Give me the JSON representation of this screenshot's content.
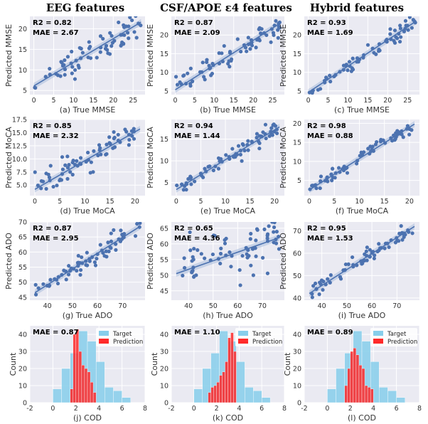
{
  "column_titles": [
    "EEG features",
    "CSF/APOE ε4 features",
    "Hybrid features"
  ],
  "colors": {
    "panel_bg": "#eaeaf2",
    "grid": "#ffffff",
    "scatter": "#4c72b0",
    "fit_line": "#4c72b0",
    "fit_band": "#a8bcdc",
    "hist_target": "#87ceeb",
    "hist_prediction": "#ff2a2a"
  },
  "chart_data": [
    {
      "type": "scatter",
      "row": 0,
      "col": 0,
      "xlabel": "(a) True MMSE",
      "ylabel": "Predicted MMSE",
      "xlim": [
        -1,
        28
      ],
      "ylim": [
        4,
        23
      ],
      "xticks": [
        0,
        5,
        10,
        15,
        20,
        25
      ],
      "yticks": [
        5,
        10,
        15,
        20
      ],
      "r2": "R2 = 0.82",
      "mae": "MAE = 2.67",
      "fit": [
        [
          0,
          6.1
        ],
        [
          27,
          21.6
        ]
      ]
    },
    {
      "type": "scatter",
      "row": 0,
      "col": 1,
      "xlabel": "(b) True MMSE",
      "ylabel": "Predicted MMSE",
      "xlim": [
        -1,
        28
      ],
      "ylim": [
        4,
        25
      ],
      "xticks": [
        0,
        5,
        10,
        15,
        20,
        25
      ],
      "yticks": [
        5,
        10,
        15,
        20
      ],
      "r2": "R2 = 0.87",
      "mae": "MAE = 2.09",
      "fit": [
        [
          0,
          5.3
        ],
        [
          27,
          23.2
        ]
      ]
    },
    {
      "type": "scatter",
      "row": 0,
      "col": 2,
      "xlabel": "(c) True MMSE",
      "ylabel": "Predicted MMSE",
      "xlim": [
        -1,
        28
      ],
      "ylim": [
        4,
        25
      ],
      "xticks": [
        0,
        5,
        10,
        15,
        20,
        25
      ],
      "yticks": [
        5,
        10,
        15,
        20
      ],
      "r2": "R2 = 0.93",
      "mae": "MAE = 1.69",
      "fit": [
        [
          0,
          4.6
        ],
        [
          27,
          23.6
        ]
      ]
    },
    {
      "type": "scatter",
      "row": 1,
      "col": 0,
      "xlabel": "(d) True MoCA",
      "ylabel": "Predicted MoCA",
      "xlim": [
        -1,
        22
      ],
      "ylim": [
        3,
        17.5
      ],
      "xticks": [
        0,
        5,
        10,
        15,
        20
      ],
      "yticks": [
        5,
        7.5,
        10,
        12.5,
        15,
        17.5
      ],
      "ytick_labels": [
        "5.0",
        "7.5",
        "10.0",
        "12.5",
        "15.0",
        "17.5"
      ],
      "r2": "R2 = 0.85",
      "mae": "MAE = 2.32",
      "fit": [
        [
          0,
          4.2
        ],
        [
          21,
          15.7
        ]
      ]
    },
    {
      "type": "scatter",
      "row": 1,
      "col": 1,
      "xlabel": "(e) True MoCA",
      "ylabel": "Predicted MoCA",
      "xlim": [
        -1,
        22
      ],
      "ylim": [
        2,
        19.5
      ],
      "xticks": [
        0,
        5,
        10,
        15,
        20
      ],
      "yticks": [
        5,
        10,
        15
      ],
      "r2": "R2 = 0.94",
      "mae": "MAE = 1.44",
      "fit": [
        [
          0,
          3.4
        ],
        [
          21,
          17.8
        ]
      ]
    },
    {
      "type": "scatter",
      "row": 1,
      "col": 2,
      "xlabel": "(f) True MoCA",
      "ylabel": "Predicted MoCA",
      "xlim": [
        -1,
        22
      ],
      "ylim": [
        1,
        21
      ],
      "xticks": [
        0,
        5,
        10,
        15,
        20
      ],
      "yticks": [
        5,
        10,
        15,
        20
      ],
      "r2": "R2 = 0.98",
      "mae": "MAE = 0.88",
      "fit": [
        [
          0,
          2.5
        ],
        [
          21,
          19.8
        ]
      ]
    },
    {
      "type": "scatter",
      "row": 2,
      "col": 0,
      "xlabel": "(g) True ADO",
      "ylabel": "Predicted ADO",
      "xlim": [
        33,
        79
      ],
      "ylim": [
        44,
        70
      ],
      "xticks": [
        40,
        50,
        60,
        70
      ],
      "yticks": [
        45,
        50,
        55,
        60,
        65,
        70
      ],
      "r2": "R2 = 0.87",
      "mae": "MAE = 2.95",
      "fit": [
        [
          35,
          46.5
        ],
        [
          77,
          68.5
        ]
      ]
    },
    {
      "type": "scatter",
      "row": 2,
      "col": 1,
      "xlabel": "(h) True ADO",
      "ylabel": "Predicted ADO",
      "xlim": [
        33,
        79
      ],
      "ylim": [
        42,
        67
      ],
      "xticks": [
        40,
        50,
        60,
        70
      ],
      "yticks": [
        45,
        50,
        55,
        60,
        65
      ],
      "r2": "R2 = 0.65",
      "mae": "MAE = 4.36",
      "fit": [
        [
          35,
          50.5
        ],
        [
          77,
          62
        ]
      ]
    },
    {
      "type": "scatter",
      "row": 2,
      "col": 2,
      "xlabel": "(i) True ADO",
      "ylabel": "Predicted ADO",
      "xlim": [
        33,
        79
      ],
      "ylim": [
        39,
        74
      ],
      "xticks": [
        40,
        50,
        60,
        70
      ],
      "yticks": [
        40,
        50,
        60,
        70
      ],
      "r2": "R2 = 0.95",
      "mae": "MAE = 1.53",
      "fit": [
        [
          35,
          42
        ],
        [
          77,
          72
        ]
      ]
    },
    {
      "type": "histogram",
      "row": 3,
      "col": 0,
      "xlabel": "(j) COD",
      "ylabel": "Count",
      "xlim": [
        -2,
        8
      ],
      "ylim": [
        0,
        45
      ],
      "xticks": [
        -2,
        0,
        2,
        4,
        6,
        8
      ],
      "yticks": [
        0,
        10,
        20,
        30,
        40
      ],
      "mae": "MAE = 0.87",
      "legend": [
        "Target",
        "Prediction"
      ],
      "legend_position": "upper right",
      "target": {
        "edges": [
          0,
          0.75,
          1.5,
          2.25,
          3.0,
          3.75,
          4.5,
          5.25,
          6.0,
          6.75
        ],
        "counts": [
          8,
          20,
          29,
          42,
          36,
          24,
          9,
          7,
          3
        ]
      },
      "prediction": {
        "edges": [
          1.5,
          1.75,
          2.0,
          2.25,
          2.5,
          2.75,
          3.0,
          3.25,
          3.5,
          3.75
        ],
        "counts": [
          8,
          40,
          43,
          30,
          22,
          20,
          18,
          12,
          6
        ]
      }
    },
    {
      "type": "histogram",
      "row": 3,
      "col": 1,
      "xlabel": "(k) COD",
      "ylabel": "Count",
      "xlim": [
        -2,
        8
      ],
      "ylim": [
        0,
        45
      ],
      "xticks": [
        -2,
        0,
        2,
        4,
        6,
        8
      ],
      "yticks": [
        0,
        10,
        20,
        30,
        40
      ],
      "mae": "MAE = 1.10",
      "legend": [
        "Target",
        "Prediction"
      ],
      "legend_position": "upper right",
      "target": {
        "edges": [
          0,
          0.75,
          1.5,
          2.25,
          3.0,
          3.75,
          4.5,
          5.25,
          6.0,
          6.75
        ],
        "counts": [
          8,
          20,
          29,
          42,
          36,
          24,
          9,
          7,
          3
        ]
      },
      "prediction": {
        "edges": [
          1.25,
          1.5,
          1.75,
          2.0,
          2.25,
          2.5,
          2.75,
          3.0,
          3.25,
          3.5,
          3.75
        ],
        "counts": [
          6,
          9,
          10,
          12,
          16,
          18,
          24,
          38,
          41,
          30
        ]
      }
    },
    {
      "type": "histogram",
      "row": 3,
      "col": 2,
      "xlabel": "(l) COD",
      "ylabel": "Count",
      "xlim": [
        -2,
        8
      ],
      "ylim": [
        0,
        45
      ],
      "xticks": [
        -2,
        0,
        2,
        4,
        6,
        8
      ],
      "yticks": [
        0,
        10,
        20,
        30,
        40
      ],
      "mae": "MAE = 0.89",
      "legend": [
        "Target",
        "Prediction"
      ],
      "legend_position": "upper right",
      "target": {
        "edges": [
          0,
          0.75,
          1.5,
          2.25,
          3.0,
          3.75,
          4.5,
          5.25,
          6.0,
          6.75
        ],
        "counts": [
          8,
          20,
          29,
          42,
          36,
          24,
          9,
          7,
          3
        ]
      },
      "prediction": {
        "edges": [
          1.5,
          1.75,
          2.0,
          2.25,
          2.5,
          2.75,
          3.0,
          3.25,
          3.5,
          3.75,
          4.0
        ],
        "counts": [
          10,
          20,
          30,
          32,
          28,
          22,
          20,
          10,
          9,
          8
        ]
      }
    }
  ]
}
